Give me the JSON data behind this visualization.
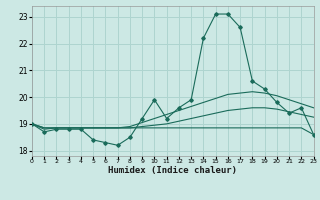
{
  "xlabel": "Humidex (Indice chaleur)",
  "bg_color": "#cce8e4",
  "grid_color": "#aed4cf",
  "line_color": "#1a6b5a",
  "xlim": [
    0,
    23
  ],
  "ylim": [
    17.8,
    23.4
  ],
  "yticks": [
    18,
    19,
    20,
    21,
    22,
    23
  ],
  "xticks": [
    0,
    1,
    2,
    3,
    4,
    5,
    6,
    7,
    8,
    9,
    10,
    11,
    12,
    13,
    14,
    15,
    16,
    17,
    18,
    19,
    20,
    21,
    22,
    23
  ],
  "series": [
    [
      19.0,
      18.7,
      18.8,
      18.8,
      18.8,
      18.4,
      18.3,
      18.2,
      18.5,
      19.2,
      19.9,
      19.2,
      19.6,
      19.9,
      22.2,
      23.1,
      23.1,
      22.6,
      20.6,
      20.3,
      19.8,
      19.4,
      19.6,
      18.6
    ],
    [
      19.0,
      18.8,
      18.85,
      18.85,
      18.85,
      18.85,
      18.85,
      18.85,
      18.9,
      19.05,
      19.2,
      19.35,
      19.5,
      19.65,
      19.8,
      19.95,
      20.1,
      20.15,
      20.2,
      20.15,
      20.05,
      19.9,
      19.75,
      19.6
    ],
    [
      19.0,
      18.85,
      18.85,
      18.85,
      18.85,
      18.85,
      18.85,
      18.85,
      18.85,
      18.9,
      18.95,
      19.0,
      19.1,
      19.2,
      19.3,
      19.4,
      19.5,
      19.55,
      19.6,
      19.6,
      19.55,
      19.45,
      19.35,
      19.25
    ],
    [
      19.0,
      18.85,
      18.85,
      18.85,
      18.85,
      18.85,
      18.85,
      18.85,
      18.85,
      18.85,
      18.85,
      18.85,
      18.85,
      18.85,
      18.85,
      18.85,
      18.85,
      18.85,
      18.85,
      18.85,
      18.85,
      18.85,
      18.85,
      18.6
    ]
  ]
}
